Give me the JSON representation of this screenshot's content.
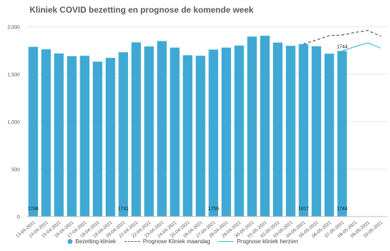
{
  "chart_data": {
    "type": "bar",
    "title": "Kliniek COVID bezetting en prognose de komende week",
    "categories": [
      "13-04-2021",
      "14-04-2021",
      "15-04-2021",
      "16-04-2021",
      "17-04-2021",
      "18-04-2021",
      "19-04-2021",
      "20-04-2021",
      "21-04-2021",
      "22-04-2021",
      "23-04-2021",
      "24-04-2021",
      "25-04-2021",
      "26-04-2021",
      "27-04-2021",
      "28-04-2021",
      "29-04-2021",
      "30-04-2021",
      "01-05-2021",
      "02-05-2021",
      "03-05-2021",
      "04-05-2021",
      "05-05-2021",
      "06-05-2021",
      "07-05-2021",
      "08-05-2021",
      "09-05-2021",
      "10-05-2021"
    ],
    "ylim": [
      0,
      2000
    ],
    "yticks": [
      "0",
      "500",
      "1,000",
      "1,500",
      "2,000"
    ],
    "grid": true,
    "legend_position": "bottom",
    "series": [
      {
        "name": "Bezetting kliniek",
        "kind": "bar",
        "color": "#3fa9d4",
        "values": [
          1788,
          1762,
          1718,
          1690,
          1694,
          1632,
          1672,
          1731,
          1835,
          1792,
          1849,
          1780,
          1700,
          1694,
          1759,
          1780,
          1801,
          1896,
          1905,
          1833,
          1799,
          1817,
          1794,
          1716,
          1744,
          null,
          null,
          null
        ]
      },
      {
        "name": "Prognose Kliniek maandag",
        "kind": "dashed-line",
        "color": "#555555",
        "values": [
          null,
          null,
          null,
          null,
          null,
          null,
          null,
          null,
          null,
          null,
          null,
          null,
          null,
          null,
          null,
          null,
          null,
          null,
          null,
          null,
          null,
          1817,
          1860,
          1906,
          1912,
          1940,
          1960,
          1900
        ]
      },
      {
        "name": "Prognose kliniek herzien",
        "kind": "line",
        "color": "#3fb6d0",
        "values": [
          null,
          null,
          null,
          null,
          null,
          null,
          null,
          null,
          null,
          null,
          null,
          null,
          null,
          null,
          null,
          null,
          null,
          null,
          null,
          null,
          null,
          null,
          null,
          null,
          1744,
          1790,
          1830,
          1775
        ]
      }
    ],
    "annotations": [
      {
        "index": 0,
        "text": "1788",
        "at": "base"
      },
      {
        "index": 7,
        "text": "1731",
        "at": "base"
      },
      {
        "index": 14,
        "text": "1759",
        "at": "base"
      },
      {
        "index": 21,
        "text": "1817",
        "at": "base"
      },
      {
        "index": 24,
        "text": "1744",
        "at": "base"
      },
      {
        "index": 24,
        "text": "1744",
        "at": "top"
      }
    ]
  }
}
